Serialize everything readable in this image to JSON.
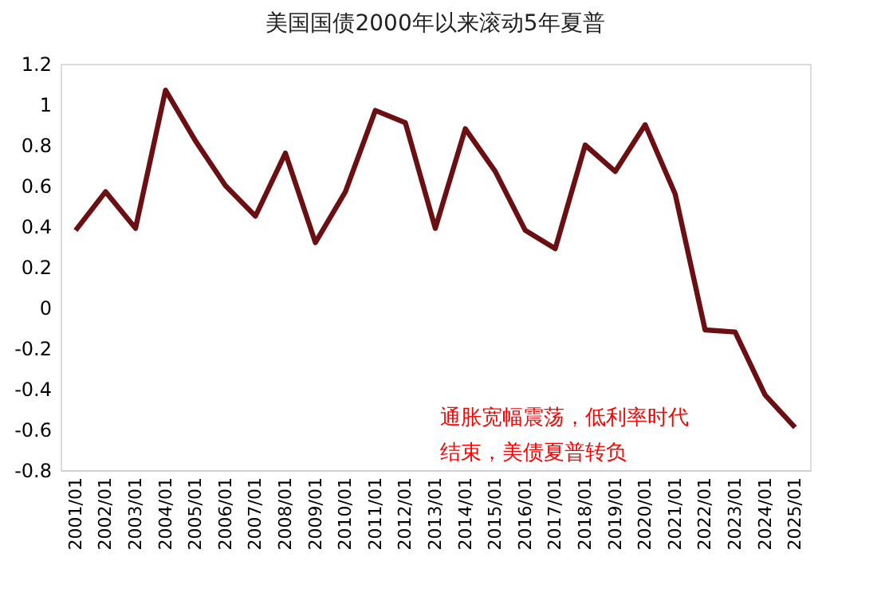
{
  "chart_data": {
    "type": "line",
    "title": "美国国债2000年以来滚动5年夏普",
    "categories": [
      "2001/01",
      "2002/01",
      "2003/01",
      "2004/01",
      "2005/01",
      "2006/01",
      "2007/01",
      "2008/01",
      "2009/01",
      "2010/01",
      "2011/01",
      "2012/01",
      "2013/01",
      "2014/01",
      "2015/01",
      "2016/01",
      "2017/01",
      "2018/01",
      "2019/01",
      "2020/01",
      "2021/01",
      "2022/01",
      "2023/01",
      "2024/01",
      "2025/01"
    ],
    "series": [
      {
        "color": "#6b0f12",
        "values": [
          0.38,
          0.57,
          0.39,
          1.07,
          0.82,
          0.6,
          0.45,
          0.76,
          0.32,
          0.57,
          0.97,
          0.91,
          0.39,
          0.88,
          0.67,
          0.38,
          0.29,
          0.8,
          0.67,
          0.9,
          0.56,
          -0.11,
          -0.12,
          -0.43,
          -0.59
        ]
      }
    ],
    "ylim": [
      -0.8,
      1.2
    ],
    "yticks": [
      -0.8,
      -0.6,
      -0.4,
      -0.2,
      0,
      0.2,
      0.4,
      0.6,
      0.8,
      1,
      1.2
    ],
    "annotations": [
      "通胀宽幅震荡，低利率时代结束，美债夏普转负"
    ],
    "grid": false,
    "marker": "none",
    "line_style": "solid"
  }
}
